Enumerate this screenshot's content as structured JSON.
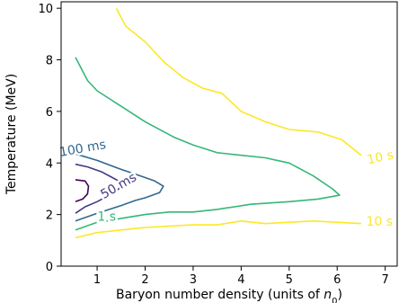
{
  "chart_data": {
    "type": "line",
    "title": "",
    "xlabel": "Baryon number density (units of ",
    "xlabel_symbol": "n",
    "xlabel_subscript": "0",
    "xlabel_suffix": ")",
    "ylabel": "Temperature (MeV)",
    "xlim": [
      0.25,
      7.25
    ],
    "ylim": [
      0,
      10.25
    ],
    "xticks": [
      1,
      2,
      3,
      4,
      5,
      6,
      7
    ],
    "yticks": [
      0,
      2,
      4,
      6,
      8,
      10
    ],
    "grid": false,
    "series": [
      {
        "name": "10 s",
        "color": "#fde725",
        "label": "10 s",
        "label_at": [
          6.9,
          4.2
        ],
        "label_rotate": -12,
        "points": [
          [
            1.4,
            10.0
          ],
          [
            1.6,
            9.3
          ],
          [
            2.0,
            8.7
          ],
          [
            2.4,
            7.9
          ],
          [
            2.8,
            7.3
          ],
          [
            3.2,
            6.9
          ],
          [
            3.6,
            6.7
          ],
          [
            4.0,
            6.0
          ],
          [
            4.5,
            5.6
          ],
          [
            5.0,
            5.3
          ],
          [
            5.6,
            5.2
          ],
          [
            6.1,
            4.9
          ],
          [
            6.5,
            4.3
          ]
        ]
      },
      {
        "name": "10 s lower",
        "color": "#fde725",
        "label": "10 s",
        "label_at": [
          6.88,
          1.7
        ],
        "label_rotate": 0,
        "points": [
          [
            0.55,
            1.1
          ],
          [
            1.0,
            1.3
          ],
          [
            1.5,
            1.4
          ],
          [
            2.0,
            1.5
          ],
          [
            2.5,
            1.55
          ],
          [
            3.0,
            1.6
          ],
          [
            3.5,
            1.6
          ],
          [
            4.0,
            1.75
          ],
          [
            4.5,
            1.65
          ],
          [
            5.0,
            1.7
          ],
          [
            5.5,
            1.75
          ],
          [
            6.0,
            1.7
          ],
          [
            6.5,
            1.65
          ]
        ]
      },
      {
        "name": "1 s",
        "color": "#35b779",
        "label": "1 s",
        "label_at": [
          1.2,
          1.9
        ],
        "label_rotate": 0,
        "points": [
          [
            0.55,
            8.1
          ],
          [
            0.8,
            7.2
          ],
          [
            1.0,
            6.8
          ],
          [
            1.5,
            6.2
          ],
          [
            2.0,
            5.6
          ],
          [
            2.6,
            5.0
          ],
          [
            3.0,
            4.7
          ],
          [
            3.5,
            4.4
          ],
          [
            4.0,
            4.3
          ],
          [
            4.5,
            4.2
          ],
          [
            5.0,
            4.0
          ],
          [
            5.5,
            3.5
          ],
          [
            5.9,
            3.0
          ],
          [
            6.05,
            2.75
          ],
          [
            5.6,
            2.6
          ],
          [
            5.0,
            2.5
          ],
          [
            4.2,
            2.4
          ],
          [
            3.5,
            2.2
          ],
          [
            3.0,
            2.1
          ],
          [
            2.5,
            2.1
          ],
          [
            2.0,
            2.0
          ],
          [
            1.5,
            1.85
          ],
          [
            1.2,
            1.75
          ],
          [
            1.0,
            1.7
          ],
          [
            0.55,
            1.4
          ]
        ]
      },
      {
        "name": "100 ms",
        "color": "#31688e",
        "label": "100 ms",
        "label_at": [
          0.7,
          4.55
        ],
        "label_rotate": -10,
        "points": [
          [
            0.55,
            4.35
          ],
          [
            1.0,
            4.1
          ],
          [
            1.5,
            3.75
          ],
          [
            1.9,
            3.5
          ],
          [
            2.2,
            3.3
          ],
          [
            2.38,
            3.1
          ],
          [
            2.3,
            2.85
          ],
          [
            2.0,
            2.65
          ],
          [
            1.8,
            2.55
          ],
          [
            1.5,
            2.35
          ],
          [
            1.0,
            2.05
          ],
          [
            0.55,
            1.75
          ]
        ]
      },
      {
        "name": "50 ms",
        "color": "#443983",
        "label": "50 ms",
        "label_at": [
          1.45,
          3.1
        ],
        "label_rotate": -30,
        "points": [
          [
            0.55,
            3.95
          ],
          [
            0.8,
            3.85
          ],
          [
            1.1,
            3.65
          ],
          [
            1.3,
            3.45
          ],
          [
            1.45,
            3.3
          ],
          [
            1.5,
            3.1
          ],
          [
            1.4,
            2.9
          ],
          [
            1.2,
            2.7
          ],
          [
            1.0,
            2.5
          ],
          [
            0.75,
            2.3
          ],
          [
            0.55,
            2.05
          ]
        ]
      },
      {
        "name": "10 ms",
        "color": "#440154",
        "label": "",
        "label_at": null,
        "label_rotate": 0,
        "points": [
          [
            0.55,
            3.35
          ],
          [
            0.75,
            3.3
          ],
          [
            0.82,
            3.1
          ],
          [
            0.8,
            2.8
          ],
          [
            0.7,
            2.6
          ],
          [
            0.55,
            2.5
          ]
        ]
      }
    ]
  }
}
